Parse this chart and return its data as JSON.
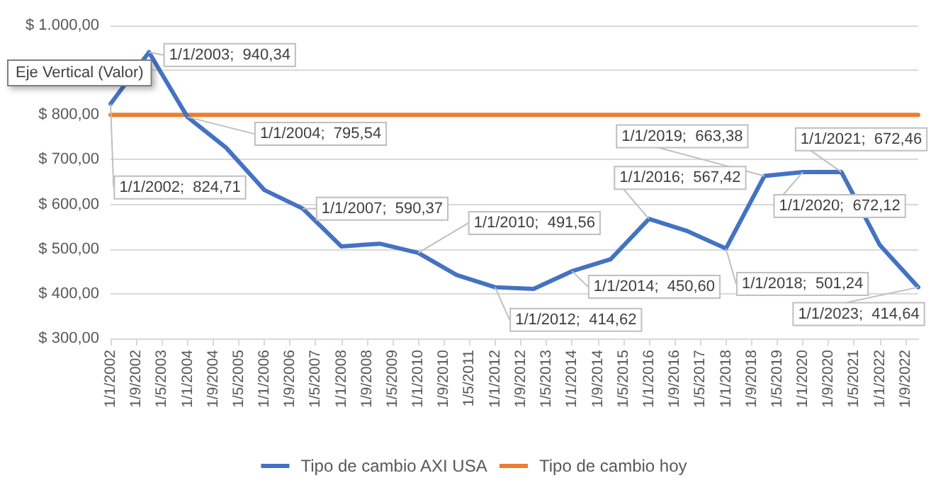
{
  "chart_data": {
    "type": "line",
    "x": [
      "2002-01-01",
      "2003-01-01",
      "2004-01-01",
      "2005-01-01",
      "2006-01-01",
      "2007-01-01",
      "2008-01-01",
      "2009-01-01",
      "2010-01-01",
      "2011-01-01",
      "2012-01-01",
      "2013-01-01",
      "2014-01-01",
      "2015-01-01",
      "2016-01-01",
      "2017-01-01",
      "2018-01-01",
      "2019-01-01",
      "2020-01-01",
      "2021-01-01",
      "2022-01-01",
      "2023-01-01"
    ],
    "series": [
      {
        "name": "Tipo de cambio AXI USA",
        "color": "#4472c4",
        "values": [
          824.71,
          940.34,
          795.54,
          727,
          632,
          590.37,
          506,
          512,
          491.56,
          442,
          414.62,
          411,
          450.6,
          477,
          567.42,
          540,
          501.24,
          663.38,
          672.12,
          672.46,
          509,
          414.64
        ],
        "value_labels": [
          "1/1/2002;  824,71",
          "1/1/2003;  940,34",
          "1/1/2004;  795,54",
          null,
          null,
          "1/1/2007;  590,37",
          null,
          null,
          "1/1/2010;  491,56",
          null,
          "1/1/2012;  414,62",
          null,
          "1/1/2014;  450,60",
          null,
          "1/1/2016;  567,42",
          null,
          "1/1/2018;  501,24",
          "1/1/2019;  663,38",
          "1/1/2020;  672,12",
          "1/1/2021;  672,46",
          null,
          "1/1/2023;  414,64"
        ]
      },
      {
        "name": "Tipo de cambio hoy",
        "color": "#ed7d31",
        "x": [
          "2002-01-01",
          "2023-01-01"
        ],
        "values": [
          800,
          800
        ]
      }
    ],
    "xlim": [
      "2002-01-01",
      "2023-01-01"
    ],
    "xticks": [
      {
        "value": "2002-01-01",
        "label": "1/1/2002"
      },
      {
        "value": "2002-09-01",
        "label": "1/9/2002"
      },
      {
        "value": "2003-05-01",
        "label": "1/5/2003"
      },
      {
        "value": "2004-01-01",
        "label": "1/1/2004"
      },
      {
        "value": "2004-09-01",
        "label": "1/9/2004"
      },
      {
        "value": "2005-05-01",
        "label": "1/5/2005"
      },
      {
        "value": "2006-01-01",
        "label": "1/1/2006"
      },
      {
        "value": "2006-09-01",
        "label": "1/9/2006"
      },
      {
        "value": "2007-05-01",
        "label": "1/5/2007"
      },
      {
        "value": "2008-01-01",
        "label": "1/1/2008"
      },
      {
        "value": "2008-09-01",
        "label": "1/9/2008"
      },
      {
        "value": "2009-05-01",
        "label": "1/5/2009"
      },
      {
        "value": "2010-01-01",
        "label": "1/1/2010"
      },
      {
        "value": "2010-09-01",
        "label": "1/9/2010"
      },
      {
        "value": "2011-05-01",
        "label": "1/5/2011"
      },
      {
        "value": "2012-01-01",
        "label": "1/1/2012"
      },
      {
        "value": "2012-09-01",
        "label": "1/9/2012"
      },
      {
        "value": "2013-05-01",
        "label": "1/5/2013"
      },
      {
        "value": "2014-01-01",
        "label": "1/1/2014"
      },
      {
        "value": "2014-09-01",
        "label": "1/9/2014"
      },
      {
        "value": "2015-05-01",
        "label": "1/5/2015"
      },
      {
        "value": "2016-01-01",
        "label": "1/1/2016"
      },
      {
        "value": "2016-09-01",
        "label": "1/9/2016"
      },
      {
        "value": "2017-05-01",
        "label": "1/5/2017"
      },
      {
        "value": "2018-01-01",
        "label": "1/1/2018"
      },
      {
        "value": "2018-09-01",
        "label": "1/9/2018"
      },
      {
        "value": "2019-05-01",
        "label": "1/5/2019"
      },
      {
        "value": "2020-01-01",
        "label": "1/1/2020"
      },
      {
        "value": "2020-09-01",
        "label": "1/9/2020"
      },
      {
        "value": "2021-05-01",
        "label": "1/5/2021"
      },
      {
        "value": "2022-01-01",
        "label": "1/1/2022"
      },
      {
        "value": "2022-09-01",
        "label": "1/9/2022"
      }
    ],
    "ylim": [
      300,
      1000
    ],
    "yticks": [
      {
        "value": 300,
        "label": "$ 300,00"
      },
      {
        "value": 400,
        "label": "$ 400,00"
      },
      {
        "value": 500,
        "label": "$ 500,00"
      },
      {
        "value": 600,
        "label": "$ 600,00"
      },
      {
        "value": 700,
        "label": "$ 700,00"
      },
      {
        "value": 800,
        "label": "$ 800,00"
      },
      {
        "value": 900,
        "label": null
      },
      {
        "value": 1000,
        "label": "$ 1.000,00"
      }
    ],
    "grid": "y",
    "legend": "bottom",
    "marker": "none",
    "line_style": "solid",
    "annotations": [
      "Eje Vertical (Valor)"
    ]
  }
}
